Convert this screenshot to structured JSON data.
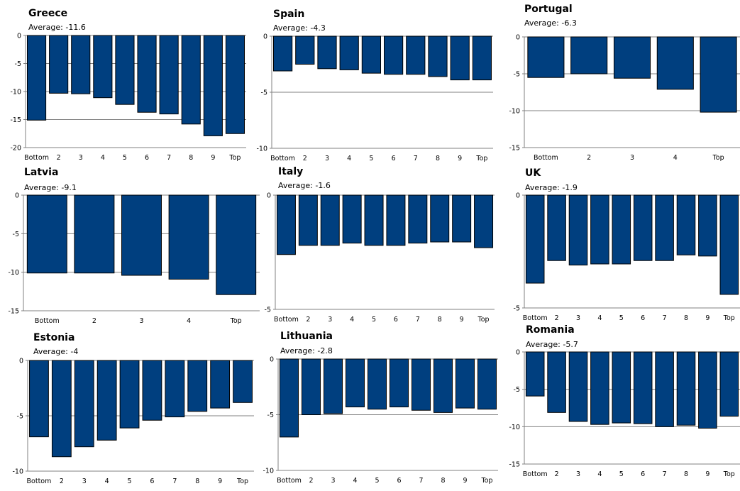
{
  "chart_data": [
    {
      "type": "bar",
      "title": "Greece",
      "subtitle": "Average: -11.6",
      "categories": [
        "Bottom",
        "2",
        "3",
        "4",
        "5",
        "6",
        "7",
        "8",
        "9",
        "Top"
      ],
      "values": [
        -15.1,
        -10.3,
        -10.4,
        -11.1,
        -12.3,
        -13.7,
        -14.0,
        -15.8,
        -17.9,
        -17.5
      ],
      "ylim": [
        -20,
        0
      ],
      "yticks": [
        0,
        -5,
        -10,
        -15,
        -20
      ],
      "grid": true
    },
    {
      "type": "bar",
      "title": "Spain",
      "subtitle": "Average: -4.3",
      "categories": [
        "Bottom",
        "2",
        "3",
        "4",
        "5",
        "6",
        "7",
        "8",
        "9",
        "Top"
      ],
      "values": [
        -3.1,
        -2.5,
        -2.9,
        -3.0,
        -3.3,
        -3.4,
        -3.4,
        -3.6,
        -3.9,
        -3.9
      ],
      "ylim": [
        -10,
        0
      ],
      "yticks": [
        0,
        -5,
        -10
      ],
      "grid": true
    },
    {
      "type": "bar",
      "title": "Portugal",
      "subtitle": "Average: -6.3",
      "categories": [
        "Bottom",
        "2",
        "3",
        "4",
        "Top"
      ],
      "values": [
        -5.5,
        -5.0,
        -5.6,
        -7.1,
        -10.2
      ],
      "ylim": [
        -15,
        0
      ],
      "yticks": [
        0,
        -5,
        -10,
        -15
      ],
      "grid": true
    },
    {
      "type": "bar",
      "title": "Latvia",
      "subtitle": "Average: -9.1",
      "categories": [
        "Bottom",
        "2",
        "3",
        "4",
        "Top"
      ],
      "values": [
        -10.1,
        -10.1,
        -10.4,
        -10.9,
        -12.9
      ],
      "ylim": [
        -15,
        0
      ],
      "yticks": [
        0,
        -5,
        -10,
        -15
      ],
      "grid": true
    },
    {
      "type": "bar",
      "title": "Italy",
      "subtitle": "Average: -1.6",
      "categories": [
        "Bottom",
        "2",
        "3",
        "4",
        "5",
        "6",
        "7",
        "8",
        "9",
        "Top"
      ],
      "values": [
        -2.6,
        -2.2,
        -2.2,
        -2.1,
        -2.2,
        -2.2,
        -2.1,
        -2.05,
        -2.05,
        -2.3
      ],
      "ylim": [
        -5,
        0
      ],
      "yticks": [
        0,
        -5
      ],
      "grid": true
    },
    {
      "type": "bar",
      "title": "UK",
      "subtitle": "Average: -1.9",
      "categories": [
        "Bottom",
        "2",
        "3",
        "4",
        "5",
        "6",
        "7",
        "8",
        "9",
        "Top"
      ],
      "values": [
        -3.9,
        -2.9,
        -3.1,
        -3.05,
        -3.05,
        -2.9,
        -2.9,
        -2.65,
        -2.7,
        -4.4
      ],
      "ylim": [
        -5,
        0
      ],
      "yticks": [
        0,
        -5
      ],
      "grid": true
    },
    {
      "type": "bar",
      "title": "Estonia",
      "subtitle": "Average: -4",
      "categories": [
        "Bottom",
        "2",
        "3",
        "4",
        "5",
        "6",
        "7",
        "8",
        "9",
        "Top"
      ],
      "values": [
        -6.9,
        -8.7,
        -7.8,
        -7.2,
        -6.1,
        -5.4,
        -5.1,
        -4.6,
        -4.3,
        -3.8
      ],
      "ylim": [
        -10,
        0
      ],
      "yticks": [
        0,
        -5,
        -10
      ],
      "grid": true
    },
    {
      "type": "bar",
      "title": "Lithuania",
      "subtitle": "Average: -2.8",
      "categories": [
        "Bottom",
        "2",
        "3",
        "4",
        "5",
        "6",
        "7",
        "8",
        "9",
        "Top"
      ],
      "values": [
        -7.0,
        -5.0,
        -4.9,
        -4.3,
        -4.5,
        -4.3,
        -4.6,
        -4.8,
        -4.4,
        -4.5
      ],
      "ylim": [
        -10,
        0
      ],
      "yticks": [
        0,
        -5,
        -10
      ],
      "grid": true
    },
    {
      "type": "bar",
      "title": "Romania",
      "subtitle": "Average: -5.7",
      "categories": [
        "Bottom",
        "2",
        "3",
        "4",
        "5",
        "6",
        "7",
        "8",
        "9",
        "Top"
      ],
      "values": [
        -5.9,
        -8.1,
        -9.3,
        -9.7,
        -9.5,
        -9.6,
        -10.0,
        -9.8,
        -10.2,
        -8.6
      ],
      "ylim": [
        -15,
        0
      ],
      "yticks": [
        0,
        -5,
        -10,
        -15
      ],
      "grid": true
    }
  ],
  "colors": {
    "bar": "#003f7f",
    "bar_stroke": "#000000",
    "grid": "#808080",
    "axis": "#808080"
  }
}
